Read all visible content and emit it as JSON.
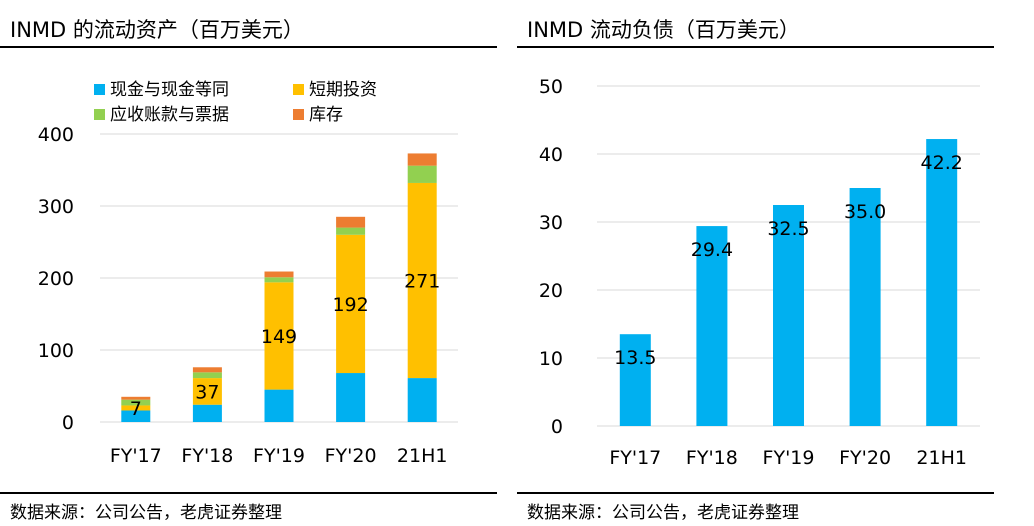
{
  "left_panel": {
    "title": "INMD 的流动资产（百万美元）",
    "source": "数据来源：公司公告，老虎证券整理"
  },
  "right_panel": {
    "title": "INMD 流动负债（百万美元）",
    "source": "数据来源：公司公告，老虎证券整理"
  },
  "chart_data": [
    {
      "type": "bar",
      "stacked": true,
      "title": "INMD 的流动资产（百万美元）",
      "categories": [
        "FY'17",
        "FY'18",
        "FY'19",
        "FY'20",
        "21H1"
      ],
      "series": [
        {
          "name": "现金与现金等同",
          "color": "#00B0F0",
          "values": [
            16,
            24,
            45,
            68,
            61
          ]
        },
        {
          "name": "短期投资",
          "color": "#FFC000",
          "values": [
            7,
            37,
            149,
            192,
            271
          ]
        },
        {
          "name": "应收账款与票据",
          "color": "#92D050",
          "values": [
            8,
            8,
            7,
            10,
            24
          ]
        },
        {
          "name": "库存",
          "color": "#ED7D31",
          "values": [
            4,
            7,
            8,
            15,
            17
          ]
        }
      ],
      "data_labels": [
        {
          "series": "短期投资",
          "values": [
            "7",
            "37",
            "149",
            "192",
            "271"
          ]
        }
      ],
      "ylim": [
        0,
        400
      ],
      "yticks": [
        "0",
        "100",
        "200",
        "300",
        "400"
      ],
      "grid": true,
      "legend": "top-left"
    },
    {
      "type": "bar",
      "title": "INMD 流动负债（百万美元）",
      "categories": [
        "FY'17",
        "FY'18",
        "FY'19",
        "FY'20",
        "21H1"
      ],
      "series": [
        {
          "color": "#00B0F0",
          "values": [
            13.5,
            29.4,
            32.5,
            35.0,
            42.2
          ]
        }
      ],
      "data_labels": [
        "13.5",
        "29.4",
        "32.5",
        "35.0",
        "42.2"
      ],
      "ylim": [
        0,
        50
      ],
      "yticks": [
        "0",
        "10",
        "20",
        "30",
        "40",
        "50"
      ],
      "grid": true
    }
  ]
}
